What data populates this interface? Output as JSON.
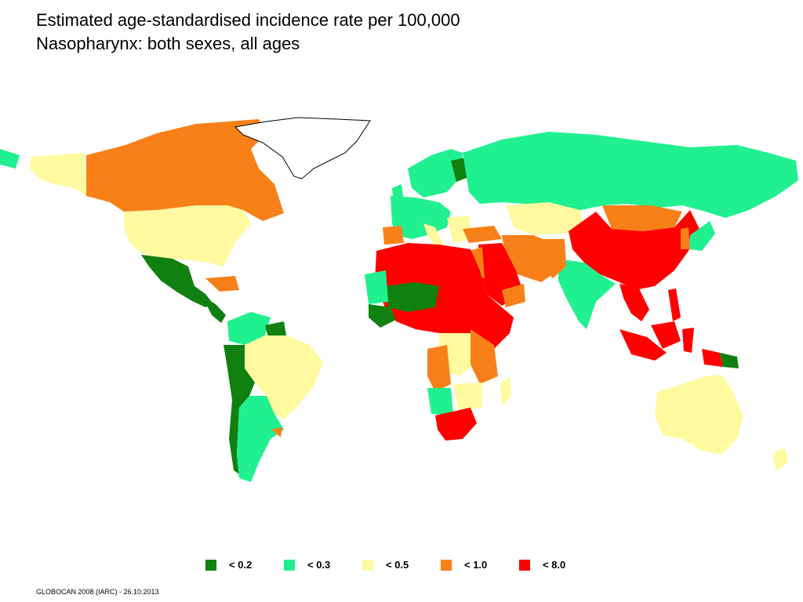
{
  "title": {
    "line1": "Estimated age-standardised incidence rate per 100,000",
    "line2": "Nasopharynx: both sexes, all ages"
  },
  "colors": {
    "lt02": "#108010",
    "lt03": "#20f090",
    "lt05": "#fffaa0",
    "lt10": "#f88018",
    "lt80": "#ff0000",
    "outline": "#000000"
  },
  "legend": [
    {
      "label": "< 0.2",
      "color": "#108010"
    },
    {
      "label": "< 0.3",
      "color": "#20f090"
    },
    {
      "label": "< 0.5",
      "color": "#fffaa0"
    },
    {
      "label": "< 1.0",
      "color": "#f88018"
    },
    {
      "label": "< 8.0",
      "color": "#ff0000"
    }
  ],
  "footer": "GLOBOCAN 2008 (IARC) - 26.10.2013"
}
